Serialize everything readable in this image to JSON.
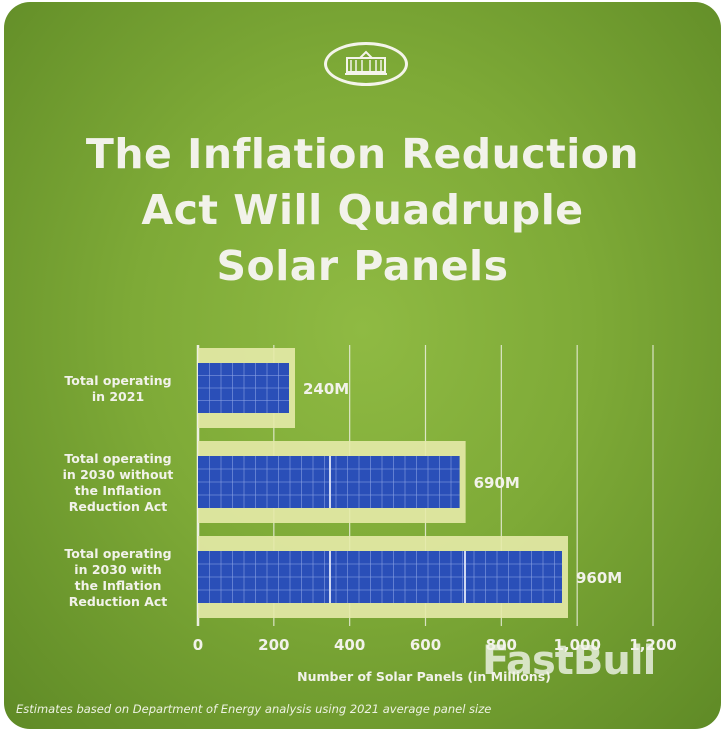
{
  "header": {
    "logo_icon": "white-house-seal-icon",
    "title_lines": [
      "The Inflation Reduction",
      "Act Will Quadruple",
      "Solar Panels"
    ]
  },
  "chart_data": {
    "type": "bar",
    "orientation": "horizontal",
    "title": "The Inflation Reduction Act Will Quadruple Solar Panels",
    "categories": [
      "Total operating in 2021",
      "Total operating in 2030 without the Inflation Reduction Act",
      "Total operating in 2030 with the Inflation Reduction Act"
    ],
    "category_lines": [
      [
        "Total operating",
        "in 2021"
      ],
      [
        "Total operating",
        "in 2030 without",
        "the Inflation",
        "Reduction Act"
      ],
      [
        "Total operating",
        "in 2030 with",
        "the Inflation",
        "Reduction Act"
      ]
    ],
    "values": [
      240,
      690,
      960
    ],
    "value_labels": [
      "240M",
      "690M",
      "960M"
    ],
    "xlabel": "Number of Solar Panels (in Millions)",
    "xlim": [
      0,
      1200
    ],
    "xticks": [
      0,
      200,
      400,
      600,
      800,
      1000,
      1200
    ],
    "xtick_labels": [
      "0",
      "200",
      "400",
      "600",
      "800",
      "1,000",
      "1,200"
    ],
    "grid": true,
    "bar_style": "solar-panel-blue",
    "colors": {
      "panel": "#2a4fb8",
      "panel_frame": "#e6eaa8",
      "gridline": "#f3f3ea"
    }
  },
  "footnote": "Estimates based on Department of Energy analysis using 2021 average panel size",
  "watermark": "FastBull"
}
